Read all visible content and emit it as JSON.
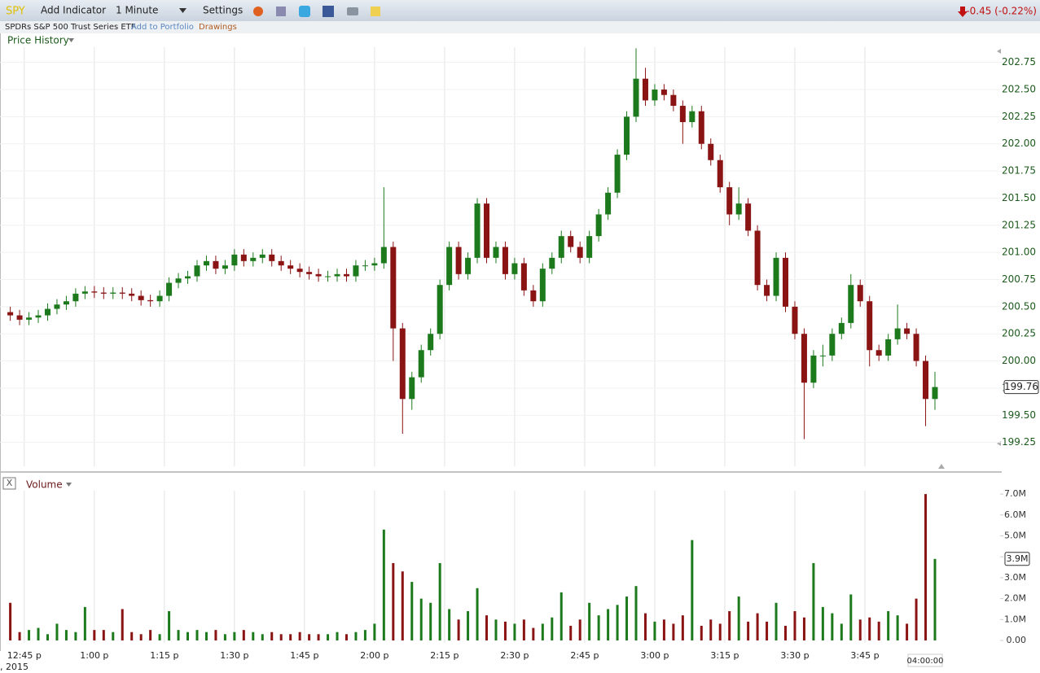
{
  "toolbar": {
    "symbol": "SPY",
    "add_indicator": "Add Indicator",
    "interval": "1 Minute",
    "settings": "Settings",
    "change": "-0.45 (-0.22%)"
  },
  "subheader": {
    "name": "SPDRs S&P 500 Trust Series ETF",
    "add_to_portfolio": "Add to Portfolio",
    "drawings": "Drawings"
  },
  "chart_data": [
    {
      "type": "candlestick",
      "title": "Price History",
      "up_color": "#1c7a1c",
      "down_color": "#8a1414",
      "grid": true,
      "x": [
        762,
        764,
        766,
        768,
        770,
        772,
        774,
        776,
        778,
        780,
        782,
        784,
        786,
        788,
        790,
        792,
        794,
        796,
        798,
        800,
        802,
        804,
        806,
        808,
        810,
        812,
        814,
        816,
        818,
        820,
        822,
        824,
        826,
        828,
        830,
        832,
        834,
        836,
        838,
        840,
        842,
        844,
        846,
        848,
        850,
        852,
        854,
        856,
        858,
        860,
        862,
        864,
        866,
        868,
        870,
        872,
        874,
        876,
        878,
        880,
        882,
        884,
        886,
        888,
        890,
        892,
        894,
        896,
        898,
        900,
        902,
        904,
        906,
        908,
        910,
        912,
        914,
        916,
        918,
        920,
        922,
        924,
        926,
        928,
        930,
        932,
        934,
        936,
        938,
        940,
        942,
        944,
        946,
        948,
        950,
        952,
        954,
        956,
        958,
        960
      ],
      "xlim": [
        759.8,
        974.3
      ],
      "xticks": [
        {
          "value": 765,
          "label": "12:45 p"
        },
        {
          "value": 780,
          "label": "1:00 p"
        },
        {
          "value": 795,
          "label": "1:15 p"
        },
        {
          "value": 810,
          "label": "1:30 p"
        },
        {
          "value": 825,
          "label": "1:45 p"
        },
        {
          "value": 840,
          "label": "2:00 p"
        },
        {
          "value": 855,
          "label": "2:15 p"
        },
        {
          "value": 870,
          "label": "2:30 p"
        },
        {
          "value": 885,
          "label": "2:45 p"
        },
        {
          "value": 900,
          "label": "3:00 p"
        },
        {
          "value": 915,
          "label": "3:15 p"
        },
        {
          "value": 930,
          "label": "3:30 p"
        },
        {
          "value": 945,
          "label": "3:45 p"
        }
      ],
      "open": [
        200.45,
        200.42,
        200.38,
        200.4,
        200.42,
        200.48,
        200.52,
        200.55,
        200.62,
        200.64,
        200.63,
        200.62,
        200.63,
        200.62,
        200.6,
        200.56,
        200.55,
        200.6,
        200.72,
        200.76,
        200.78,
        200.88,
        200.92,
        200.85,
        200.88,
        200.98,
        200.92,
        200.95,
        200.98,
        200.92,
        200.88,
        200.85,
        200.82,
        200.8,
        200.78,
        200.78,
        200.8,
        200.78,
        200.88,
        200.88,
        200.9,
        201.05,
        200.3,
        199.65,
        199.85,
        200.1,
        200.25,
        200.7,
        201.05,
        200.8,
        200.95,
        201.45,
        200.95,
        201.05,
        200.8,
        200.9,
        200.65,
        200.55,
        200.85,
        200.95,
        201.15,
        201.05,
        200.95,
        201.15,
        201.35,
        201.55,
        201.9,
        202.25,
        202.6,
        202.4,
        202.5,
        202.45,
        202.35,
        202.2,
        202.3,
        202.0,
        201.85,
        201.6,
        201.35,
        201.45,
        201.2,
        200.7,
        200.6,
        200.95,
        200.5,
        200.25,
        199.8,
        200.05,
        200.05,
        200.25,
        200.35,
        200.7,
        200.55,
        200.1,
        200.05,
        200.2,
        200.3,
        200.25,
        200.0,
        199.65
      ],
      "high": [
        200.5,
        200.47,
        200.45,
        200.47,
        200.53,
        200.57,
        200.6,
        200.67,
        200.69,
        200.69,
        200.68,
        200.68,
        200.68,
        200.67,
        200.65,
        200.61,
        200.65,
        200.77,
        200.81,
        200.83,
        200.93,
        200.97,
        200.97,
        200.93,
        201.03,
        201.03,
        201.0,
        201.03,
        201.03,
        200.97,
        200.93,
        200.9,
        200.87,
        200.85,
        200.83,
        200.85,
        200.85,
        200.93,
        200.93,
        200.95,
        201.6,
        201.1,
        200.35,
        199.9,
        200.15,
        200.3,
        200.75,
        201.1,
        201.1,
        201.0,
        201.5,
        201.5,
        201.1,
        201.1,
        200.95,
        200.95,
        200.7,
        200.9,
        201.0,
        201.2,
        201.2,
        201.1,
        201.2,
        201.4,
        201.6,
        201.95,
        202.3,
        202.88,
        202.7,
        202.55,
        202.55,
        202.5,
        202.4,
        202.35,
        202.35,
        202.05,
        201.9,
        201.65,
        201.6,
        201.5,
        201.25,
        200.75,
        201.0,
        201.0,
        200.55,
        200.3,
        200.1,
        200.15,
        200.3,
        200.4,
        200.8,
        200.75,
        200.6,
        200.15,
        200.25,
        200.52,
        200.35,
        200.3,
        200.05,
        199.9
      ],
      "low": [
        200.37,
        200.33,
        200.33,
        200.35,
        200.37,
        200.43,
        200.47,
        200.5,
        200.57,
        200.58,
        200.57,
        200.57,
        200.57,
        200.55,
        200.51,
        200.5,
        200.5,
        200.55,
        200.67,
        200.71,
        200.73,
        200.83,
        200.8,
        200.8,
        200.83,
        200.87,
        200.87,
        200.9,
        200.87,
        200.83,
        200.8,
        200.77,
        200.75,
        200.73,
        200.73,
        200.73,
        200.73,
        200.73,
        200.83,
        200.83,
        200.85,
        200.0,
        199.33,
        199.55,
        199.8,
        200.05,
        200.2,
        200.65,
        200.75,
        200.75,
        200.9,
        200.9,
        200.9,
        200.75,
        200.75,
        200.6,
        200.5,
        200.5,
        200.8,
        200.9,
        201.0,
        200.9,
        200.9,
        201.1,
        201.3,
        201.5,
        201.85,
        202.2,
        202.35,
        202.35,
        202.4,
        202.3,
        202.0,
        202.15,
        201.95,
        201.8,
        201.55,
        201.25,
        201.3,
        201.15,
        200.65,
        200.55,
        200.55,
        200.45,
        200.2,
        199.28,
        199.75,
        199.95,
        200.0,
        200.2,
        200.3,
        200.5,
        199.95,
        200.0,
        200.0,
        200.15,
        200.2,
        199.95,
        199.4,
        199.55
      ],
      "close": [
        200.42,
        200.38,
        200.4,
        200.42,
        200.48,
        200.52,
        200.55,
        200.62,
        200.64,
        200.63,
        200.62,
        200.63,
        200.62,
        200.6,
        200.56,
        200.55,
        200.6,
        200.72,
        200.76,
        200.78,
        200.88,
        200.92,
        200.85,
        200.88,
        200.98,
        200.92,
        200.95,
        200.98,
        200.92,
        200.88,
        200.85,
        200.82,
        200.8,
        200.78,
        200.78,
        200.8,
        200.78,
        200.88,
        200.88,
        200.9,
        201.05,
        200.3,
        199.65,
        199.85,
        200.1,
        200.25,
        200.7,
        201.05,
        200.8,
        200.95,
        201.45,
        200.95,
        201.05,
        200.8,
        200.9,
        200.65,
        200.55,
        200.85,
        200.95,
        201.15,
        201.05,
        200.95,
        201.15,
        201.35,
        201.55,
        201.9,
        202.25,
        202.6,
        202.4,
        202.5,
        202.45,
        202.35,
        202.2,
        202.3,
        202.0,
        201.85,
        201.6,
        201.35,
        201.45,
        201.2,
        200.7,
        200.6,
        200.95,
        200.5,
        200.25,
        199.8,
        200.05,
        200.05,
        200.25,
        200.35,
        200.7,
        200.55,
        200.1,
        200.05,
        200.2,
        200.3,
        200.25,
        200.0,
        199.65,
        199.76
      ],
      "ylim": [
        199.03,
        202.89
      ],
      "yticks": [
        199.25,
        {
          "value": 199.5,
          "label": "199.50"
        },
        199.75,
        {
          "value": 200,
          "label": "200.00"
        },
        200.25,
        {
          "value": 200.5,
          "label": "200.50"
        },
        200.75,
        {
          "value": 201,
          "label": "201.00"
        },
        201.25,
        {
          "value": 201.5,
          "label": "201.50"
        },
        201.75,
        {
          "value": 202,
          "label": "202.00"
        },
        202.25,
        {
          "value": 202.5,
          "label": "202.50"
        },
        202.75
      ]
    },
    {
      "type": "bar",
      "title": "Volume",
      "close_button": "X",
      "value_badge": "3.9M",
      "values": [
        1.8,
        0.4,
        0.5,
        0.6,
        0.3,
        0.8,
        0.5,
        0.4,
        1.6,
        0.5,
        0.5,
        0.4,
        1.5,
        0.4,
        0.3,
        0.5,
        0.3,
        1.4,
        0.5,
        0.4,
        0.5,
        0.4,
        0.5,
        0.3,
        0.4,
        0.5,
        0.4,
        0.3,
        0.4,
        0.3,
        0.3,
        0.4,
        0.3,
        0.3,
        0.3,
        0.4,
        0.3,
        0.4,
        0.5,
        0.8,
        5.3,
        3.7,
        3.3,
        2.8,
        2.0,
        1.8,
        3.7,
        1.5,
        1.0,
        1.4,
        2.5,
        1.2,
        1.0,
        0.9,
        0.8,
        1.0,
        0.6,
        0.8,
        1.1,
        2.3,
        0.7,
        1.0,
        1.8,
        1.2,
        1.5,
        1.7,
        2.1,
        2.6,
        1.3,
        0.9,
        1.0,
        0.8,
        1.2,
        4.8,
        0.7,
        1.0,
        0.8,
        1.4,
        2.1,
        0.9,
        1.3,
        0.9,
        1.8,
        0.7,
        1.4,
        1.1,
        3.7,
        1.6,
        1.3,
        0.8,
        2.2,
        1.0,
        1.1,
        0.9,
        1.4,
        1.2,
        0.8,
        2.0,
        7.0,
        3.9
      ],
      "ylim": [
        0,
        7.16
      ],
      "yticks": [
        {
          "value": 0,
          "label": "0.00"
        },
        {
          "value": 1,
          "label": "1.0M"
        },
        {
          "value": 2,
          "label": "2.0M"
        },
        {
          "value": 3,
          "label": "3.0M"
        },
        {
          "value": 4,
          "label": "4.0M"
        },
        {
          "value": 5,
          "label": "5.0M"
        },
        {
          "value": 6,
          "label": "6.0M"
        },
        {
          "value": 7,
          "label": "7.0M"
        }
      ]
    }
  ],
  "footer": {
    "cursor_time": "04:00:00",
    "year": ", 2015"
  }
}
